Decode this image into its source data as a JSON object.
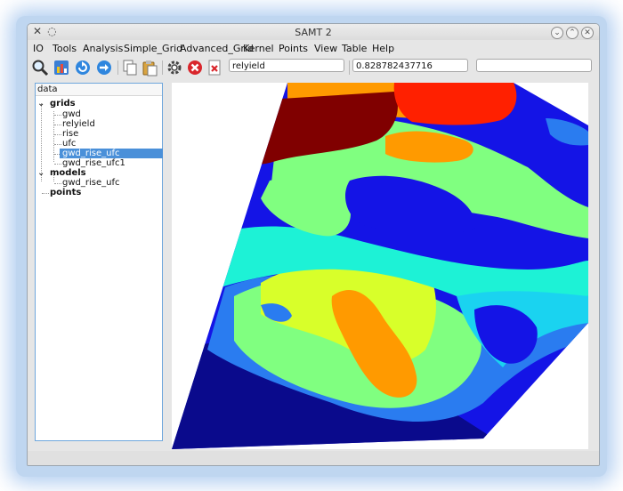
{
  "window": {
    "title": "SAMT 2"
  },
  "menu": [
    "IO",
    "Tools",
    "Analysis",
    "Simple_Grid",
    "Advanced_Grid",
    "Kernel",
    "Points",
    "View",
    "Table",
    "Help"
  ],
  "toolbar": {
    "icons": [
      "zoom-icon",
      "chart-icon",
      "refresh-icon",
      "forward-icon",
      "copy-icon",
      "paste-icon",
      "settings-icon",
      "stop-icon",
      "delete-icon"
    ],
    "grid_field": "relyield",
    "value_field": "0.828782437716",
    "extra_field": ""
  },
  "tree": {
    "header": "data",
    "grids_label": "grids",
    "grids": [
      "gwd",
      "relyield",
      "rise",
      "ufc",
      "gwd_rise_ufc",
      "gwd_rise_ufc1"
    ],
    "selected": "gwd_rise_ufc",
    "models_label": "models",
    "models": [
      "gwd_rise_ufc"
    ],
    "points_label": "points"
  },
  "colors": {
    "accent": "#4a90d9",
    "panel_border": "#6fa7dc"
  }
}
